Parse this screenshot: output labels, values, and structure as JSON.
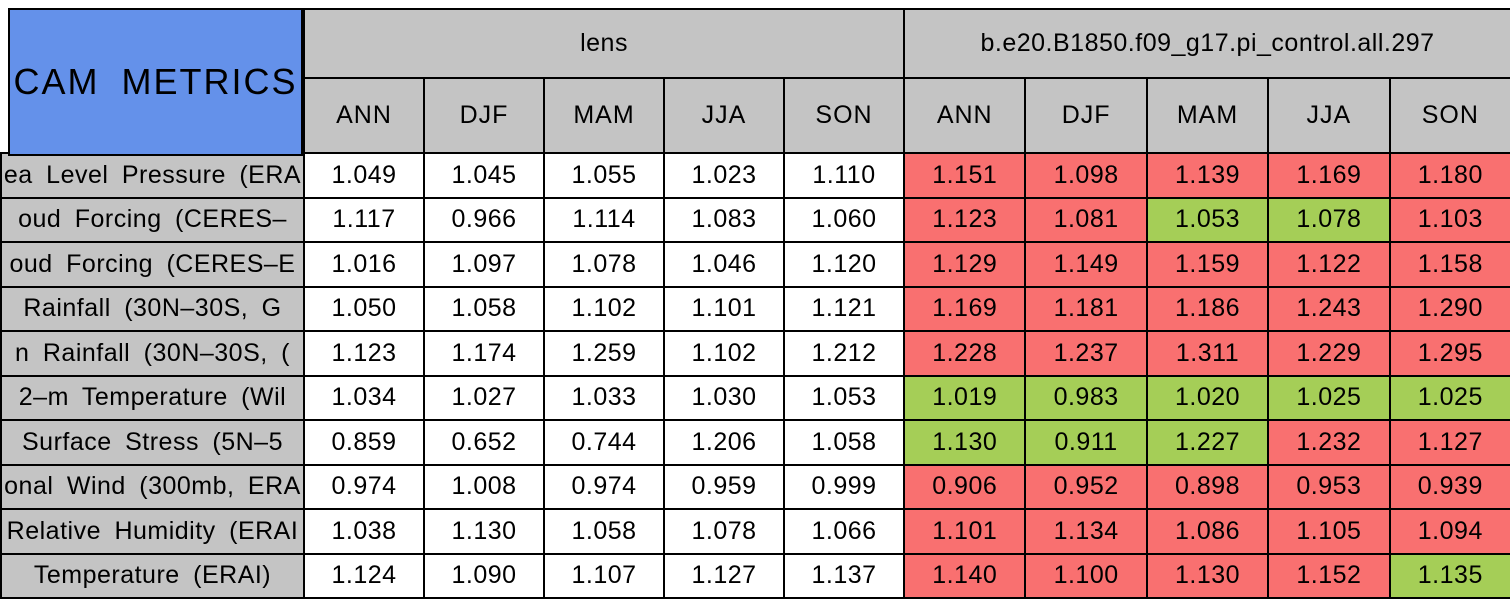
{
  "colors": {
    "title_bg": "#6491EA",
    "header_bg": "#C4C4C4",
    "red": "#F97070",
    "green": "#A5CE57",
    "cell_white": "#FFFFFF",
    "border": "#000000"
  },
  "chart_data": {
    "type": "table",
    "corner_title": "CAM METRICS",
    "column_groups": [
      "lens",
      "b.e20.B1850.f09_g17.pi_control.all.297"
    ],
    "seasons": [
      "ANN",
      "DJF",
      "MAM",
      "JJA",
      "SON"
    ],
    "rows": [
      {
        "visible_label": "ea Level Pressure (ERA",
        "lens": [
          "1.049",
          "1.045",
          "1.055",
          "1.023",
          "1.110"
        ],
        "model": [
          "1.151",
          "1.098",
          "1.139",
          "1.169",
          "1.180"
        ],
        "model_colors": [
          "red",
          "red",
          "red",
          "red",
          "red"
        ]
      },
      {
        "visible_label": "oud Forcing (CERES–",
        "lens": [
          "1.117",
          "0.966",
          "1.114",
          "1.083",
          "1.060"
        ],
        "model": [
          "1.123",
          "1.081",
          "1.053",
          "1.078",
          "1.103"
        ],
        "model_colors": [
          "red",
          "red",
          "green",
          "green",
          "red"
        ]
      },
      {
        "visible_label": "oud Forcing (CERES–E",
        "lens": [
          "1.016",
          "1.097",
          "1.078",
          "1.046",
          "1.120"
        ],
        "model": [
          "1.129",
          "1.149",
          "1.159",
          "1.122",
          "1.158"
        ],
        "model_colors": [
          "red",
          "red",
          "red",
          "red",
          "red"
        ]
      },
      {
        "visible_label": "Rainfall (30N–30S, G",
        "lens": [
          "1.050",
          "1.058",
          "1.102",
          "1.101",
          "1.121"
        ],
        "model": [
          "1.169",
          "1.181",
          "1.186",
          "1.243",
          "1.290"
        ],
        "model_colors": [
          "red",
          "red",
          "red",
          "red",
          "red"
        ]
      },
      {
        "visible_label": "n Rainfall (30N–30S, (",
        "lens": [
          "1.123",
          "1.174",
          "1.259",
          "1.102",
          "1.212"
        ],
        "model": [
          "1.228",
          "1.237",
          "1.311",
          "1.229",
          "1.295"
        ],
        "model_colors": [
          "red",
          "red",
          "red",
          "red",
          "red"
        ]
      },
      {
        "visible_label": "2–m Temperature (Wil",
        "lens": [
          "1.034",
          "1.027",
          "1.033",
          "1.030",
          "1.053"
        ],
        "model": [
          "1.019",
          "0.983",
          "1.020",
          "1.025",
          "1.025"
        ],
        "model_colors": [
          "green",
          "green",
          "green",
          "green",
          "green"
        ]
      },
      {
        "visible_label": "Surface Stress (5N–5",
        "lens": [
          "0.859",
          "0.652",
          "0.744",
          "1.206",
          "1.058"
        ],
        "model": [
          "1.130",
          "0.911",
          "1.227",
          "1.232",
          "1.127"
        ],
        "model_colors": [
          "green",
          "green",
          "green",
          "red",
          "red"
        ]
      },
      {
        "visible_label": "onal Wind (300mb, ERA",
        "lens": [
          "0.974",
          "1.008",
          "0.974",
          "0.959",
          "0.999"
        ],
        "model": [
          "0.906",
          "0.952",
          "0.898",
          "0.953",
          "0.939"
        ],
        "model_colors": [
          "red",
          "red",
          "red",
          "red",
          "red"
        ]
      },
      {
        "visible_label": "Relative Humidity (ERAI",
        "lens": [
          "1.038",
          "1.130",
          "1.058",
          "1.078",
          "1.066"
        ],
        "model": [
          "1.101",
          "1.134",
          "1.086",
          "1.105",
          "1.094"
        ],
        "model_colors": [
          "red",
          "red",
          "red",
          "red",
          "red"
        ]
      },
      {
        "visible_label": "Temperature (ERAI)",
        "lens": [
          "1.124",
          "1.090",
          "1.107",
          "1.127",
          "1.137"
        ],
        "model": [
          "1.140",
          "1.100",
          "1.130",
          "1.152",
          "1.135"
        ],
        "model_colors": [
          "red",
          "red",
          "red",
          "red",
          "green"
        ]
      }
    ]
  }
}
